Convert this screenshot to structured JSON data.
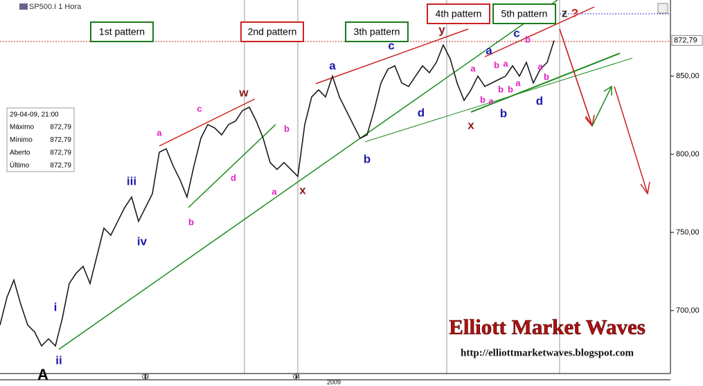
{
  "chart_data": {
    "type": "line",
    "header": "SP500.I 1 Hora",
    "color": "#1a1a1a",
    "values": [
      690.7,
      708.4,
      719.5,
      704,
      690.7,
      686.3,
      677.4,
      681.9,
      677.4,
      695.1,
      717.3,
      723.9,
      728.3,
      717.3,
      735,
      752.7,
      748.2,
      757.1,
      765.9,
      772.6,
      757.1,
      765.9,
      774.8,
      801.3,
      803.5,
      792.5,
      783.6,
      772.6,
      792.5,
      810.2,
      819,
      816.8,
      812.4,
      819,
      821.2,
      827.9,
      830.1,
      821.2,
      810.2,
      794.7,
      790.3,
      794.7,
      790.3,
      785.8,
      819,
      836.7,
      841.2,
      836.7,
      850,
      836.7,
      827.9,
      819,
      810.2,
      812.4,
      827.9,
      845.6,
      854.4,
      856.6,
      845.6,
      843.4,
      850,
      856.6,
      852.2,
      858.8,
      869.9,
      861.1,
      845.6,
      834.5,
      841.2,
      850,
      843.4,
      845.6,
      847.8,
      850,
      856.6,
      850,
      858.8,
      845.6,
      854.4,
      858.8,
      872.79
    ],
    "xlim": [
      0,
      96.8
    ],
    "xticks": [
      {
        "value": 21,
        "label": "03"
      },
      {
        "value": 42.8,
        "label": "04"
      }
    ],
    "x_year": "2009",
    "ylim": [
      659.7,
      898.7
    ],
    "yticks": [
      {
        "value": 700,
        "label": "700,00"
      },
      {
        "value": 750,
        "label": "750,00"
      },
      {
        "value": 800,
        "label": "800,00"
      },
      {
        "value": 850,
        "label": "850,00"
      }
    ],
    "last_price": {
      "value": 872.79,
      "label": "872,79"
    },
    "info_box": {
      "date": "29-04-09, 21:00",
      "rows": [
        [
          "Máximo",
          "872,79"
        ],
        [
          "Mínimo",
          "872,79"
        ],
        [
          "Aberto",
          "872,79"
        ],
        [
          "Último",
          "872,79"
        ]
      ]
    },
    "patterns": [
      {
        "text": "1st pattern",
        "color": "#1a7a1a"
      },
      {
        "text": "2nd pattern",
        "color": "#cc2020"
      },
      {
        "text": "3th pattern",
        "color": "#1a7a1a"
      },
      {
        "text": "4th pattern",
        "color": "#cc2020"
      },
      {
        "text": "5th pattern",
        "color": "#1a7a1a"
      }
    ],
    "waves": [
      {
        "text": "A",
        "color": "#000"
      },
      {
        "text": "i",
        "color": "#1a1aa8"
      },
      {
        "text": "ii",
        "color": "#1a1aa8"
      },
      {
        "text": "iii",
        "color": "#1a1aa8"
      },
      {
        "text": "iv",
        "color": "#1a1aa8"
      },
      {
        "text": "a",
        "color": "#e020c0"
      },
      {
        "text": "b",
        "color": "#e020c0"
      },
      {
        "text": "c",
        "color": "#e020c0"
      },
      {
        "text": "d",
        "color": "#e020c0"
      },
      {
        "text": "w",
        "color": "#8b1a1a"
      },
      {
        "text": "b",
        "color": "#e020c0"
      },
      {
        "text": "a",
        "color": "#e020c0"
      },
      {
        "text": "x",
        "color": "#8b1a1a"
      },
      {
        "text": "a",
        "color": "#1a1aa8"
      },
      {
        "text": "b",
        "color": "#1a1aa8"
      },
      {
        "text": "c",
        "color": "#1a1aa8"
      },
      {
        "text": "d",
        "color": "#1a1aa8"
      },
      {
        "text": "y",
        "color": "#8b1a1a"
      },
      {
        "text": "x",
        "color": "#8b1a1a"
      },
      {
        "text": "a",
        "color": "#e020c0"
      },
      {
        "text": "b",
        "color": "#e020c0"
      },
      {
        "text": "a",
        "color": "#e020c0"
      },
      {
        "text": "b",
        "color": "#e020c0"
      },
      {
        "text": "a",
        "color": "#e020c0"
      },
      {
        "text": "b",
        "color": "#e020c0"
      },
      {
        "text": "b",
        "color": "#1a1aa8"
      },
      {
        "text": "a",
        "color": "#1a1aa8"
      },
      {
        "text": "c",
        "color": "#1a1aa8"
      },
      {
        "text": "a",
        "color": "#e020c0"
      },
      {
        "text": "b",
        "color": "#e020c0"
      },
      {
        "text": "b",
        "color": "#e020c0"
      },
      {
        "text": "a",
        "color": "#e020c0"
      },
      {
        "text": "d",
        "color": "#1a1aa8"
      },
      {
        "text": "b",
        "color": "#e020c0"
      },
      {
        "text": "z",
        "color": "#333"
      },
      {
        "text": "?",
        "color": "#cc2020"
      }
    ],
    "watermark": "Elliott Market Waves",
    "url": "http://elliottmarketwaves.blogspot.com"
  }
}
